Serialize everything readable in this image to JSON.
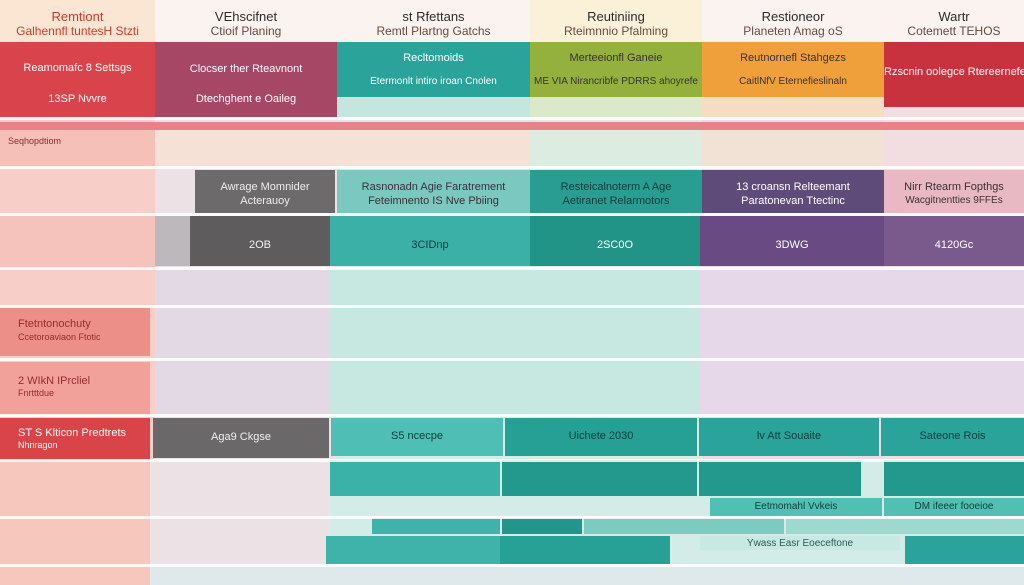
{
  "colors": {
    "red": "#d9434b",
    "plum": "#a64766",
    "teal": "#2aa39a",
    "olive": "#93b13c",
    "orange": "#f0a03a",
    "crimson": "#c8323f",
    "gray": "#6d6a6c",
    "purple": "#5e4b7a"
  },
  "header": {
    "c1": {
      "t1": "Remtiont",
      "t2": "Galhennfl tuntesH Stzti"
    },
    "c2": {
      "t1": "VEhscifnet",
      "t2": "Ctioif Planing"
    },
    "c3": {
      "t1": "st Rfettans",
      "t2": "Remtl Plartng Gatchs"
    },
    "c4": {
      "t1": "Reutiniing",
      "t2": "Rteimnnio Pfalming"
    },
    "c5": {
      "t1": "Restioneor",
      "t2": "Planeten Amag oS"
    },
    "c6": {
      "t1": "Wartr",
      "t2": "Cotemett TEHOS"
    }
  },
  "band1": {
    "a1": "Reamomafc 8 Settsgs",
    "a2": "13SP Nvvre",
    "b1": "Clocser ther Rteavnont",
    "b2": "Dtechghent e Oaileg",
    "c1": "Recltomoids",
    "c2": "Etermonlt intiro iroan Cnolen",
    "d1": "Merteeionfl Ganeie",
    "d2": "ME VIA Nirancribfe PDRRS ahoyrefe",
    "e1": "Reutnornefl Stahgezs",
    "e2": "CaitlNfV Eternefieslinaln",
    "f1": "Rzscnin oolegce Rtereernefe"
  },
  "left": {
    "sub": "Seqhopdtiom",
    "r1a": "Ftetntonochuty",
    "r1b": "Ccetoroaviaon Ftotic",
    "r2a": "2 WIkN IPrcliel",
    "r2b": "Fnrtttdue",
    "r3a": "ST S Klticon Predtrets",
    "r3b": "Nhnragon"
  },
  "band2": {
    "g1": "Awrage Momnider",
    "g2": "Acterauoy",
    "t1": "Rasnonadn Agie Faratrement",
    "t2": "Feteimnento IS Nve Pbiing",
    "t3": "Resteicalnoterm A Age",
    "t4": "Aetiranet Relarmotors",
    "p1": "13 croansn Relteemant",
    "p2": "Paratonevan Ttectinc",
    "p3": "Nirr Rtearm Fopthgs",
    "p4": "Wacgitnentties 9FFEs"
  },
  "values": {
    "v1": "2OB",
    "v2": "3CIDnp",
    "v3": "2SC0O",
    "v4": "3DWG",
    "v5": "4120Gc"
  },
  "band3": {
    "a": "Aga9 Ckgse",
    "b": "S5 ncecpe",
    "c": "Uichete 2030",
    "d": "lv Att Souaite",
    "e": "Sateone Rois"
  },
  "bottom": {
    "a": "Eetmomahl Vvkeis",
    "b": "DM ifeeer fooeioe",
    "c": "Ywass Easr Eoeceftone"
  }
}
